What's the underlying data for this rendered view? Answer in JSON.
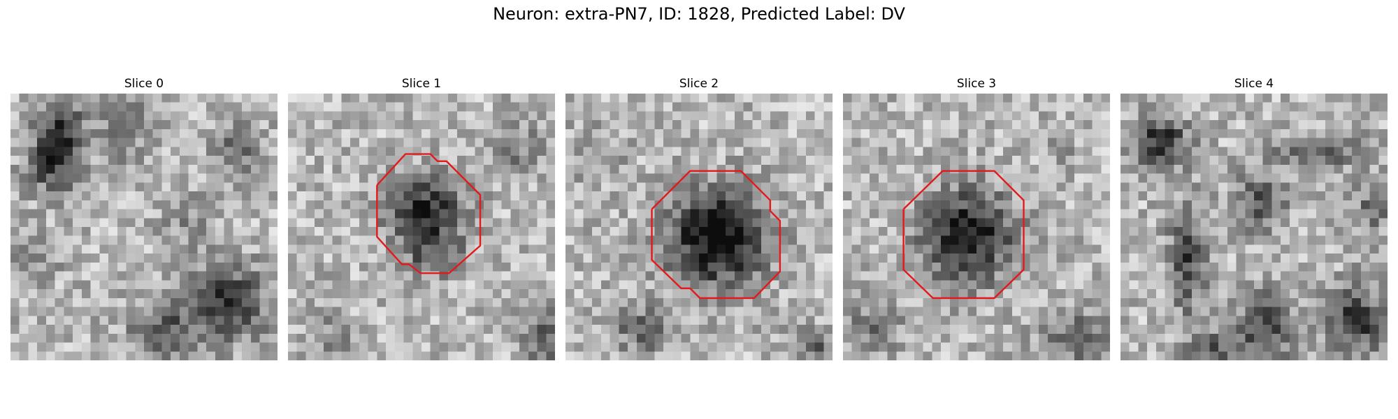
{
  "figure": {
    "title": "Neuron: extra-PN7, ID: 1828, Predicted Label: DV"
  },
  "panels": [
    {
      "title": "Slice 0",
      "contour": false
    },
    {
      "title": "Slice 1",
      "contour": true
    },
    {
      "title": "Slice 2",
      "contour": true
    },
    {
      "title": "Slice 3",
      "contour": true
    },
    {
      "title": "Slice 4",
      "contour": false
    }
  ],
  "style": {
    "contour_color": "#e31a1c",
    "colormap": "grayscale"
  }
}
